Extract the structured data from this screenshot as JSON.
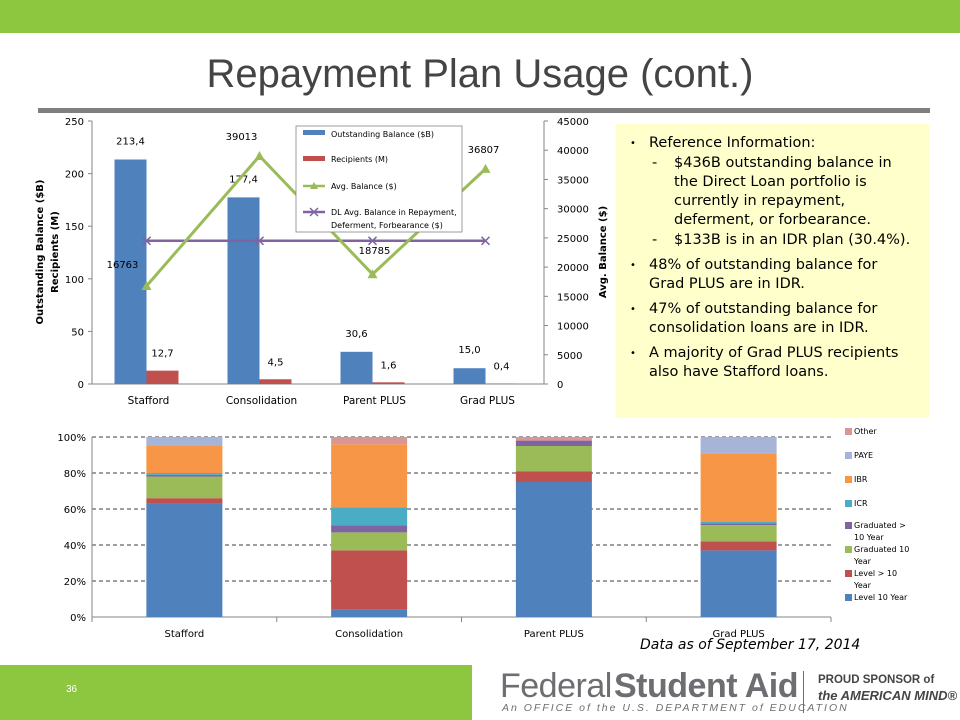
{
  "slide": {
    "title": "Repayment Plan Usage (cont.)",
    "page_number": "36",
    "data_note": "Data as of September 17, 2014"
  },
  "reference_box": {
    "items": [
      {
        "text": "Reference Information:",
        "sub": [
          "$436B outstanding balance in the Direct Loan portfolio is currently in repayment, deferment, or forbearance.",
          "$133B is in an IDR plan (30.4%)."
        ]
      },
      {
        "text": "48% of outstanding balance for Grad PLUS are in IDR.",
        "sub": []
      },
      {
        "text": "47% of outstanding balance for consolidation loans are in IDR.",
        "sub": []
      },
      {
        "text": "A majority of Grad PLUS recipients also have Stafford loans.",
        "sub": []
      }
    ]
  },
  "footer": {
    "logo_federal": "Federal",
    "logo_student_aid": "Student Aid",
    "logo_office": "An OFFICE of the U.S. DEPARTMENT of EDUCATION",
    "sponsor_line1": "PROUD SPONSOR of",
    "sponsor_line2": "the AMERICAN MIND",
    "sponsor_mark": "®"
  },
  "chart_data": [
    {
      "type": "bar",
      "categories": [
        "Stafford",
        "Consolidation",
        "Parent PLUS",
        "Grad PLUS"
      ],
      "ylabel_left_line1": "Outstanding Balance ($B)",
      "ylabel_left_line2": "Recipients (M)",
      "ylabel_right": "Avg. Balance ($)",
      "ylim_left": [
        0,
        250
      ],
      "yticks_left": [
        "0",
        "50",
        "100",
        "150",
        "200",
        "250"
      ],
      "ylim_right": [
        0,
        45000
      ],
      "yticks_right": [
        "0",
        "5000",
        "10000",
        "15000",
        "20000",
        "25000",
        "30000",
        "35000",
        "40000",
        "45000"
      ],
      "legend_position": "top-center",
      "series": [
        {
          "name": "Outstanding Balance ($B)",
          "kind": "bar",
          "axis": "left",
          "color": "#4f81bd",
          "values": [
            213.4,
            177.4,
            30.6,
            15.0
          ],
          "labels": [
            "213,4",
            "177,4",
            "30,6",
            "15,0"
          ]
        },
        {
          "name": "Recipients (M)",
          "kind": "bar",
          "axis": "left",
          "color": "#c0504d",
          "values": [
            12.7,
            4.5,
            1.6,
            0.4
          ],
          "labels": [
            "12,7",
            "4,5",
            "1,6",
            "0,4"
          ]
        },
        {
          "name": "Avg. Balance ($)",
          "kind": "line",
          "axis": "right",
          "color": "#9bbb59",
          "values": [
            16763,
            39013,
            18785,
            36807
          ],
          "labels": [
            "16763",
            "39013",
            "18785",
            "36807"
          ]
        },
        {
          "name_line1": "DL Avg. Balance in Repayment,",
          "name_line2": "Deferment, Forbearance ($)",
          "kind": "line",
          "axis": "right",
          "color": "#8064a2",
          "values": [
            24500,
            24500,
            24500,
            24500
          ]
        }
      ]
    },
    {
      "type": "bar",
      "stacked": true,
      "percent": true,
      "categories": [
        "Stafford",
        "Consolidation",
        "Parent PLUS",
        "Grad PLUS"
      ],
      "ylim": [
        0,
        100
      ],
      "yticks": [
        "0%",
        "20%",
        "40%",
        "60%",
        "80%",
        "100%"
      ],
      "legend_position": "right",
      "series": [
        {
          "name": "Level 10 Year",
          "color": "#4f81bd",
          "values": [
            63,
            4,
            75,
            37
          ]
        },
        {
          "name": "Level > 10 Year",
          "color": "#c0504d",
          "values": [
            3,
            33,
            6,
            5
          ]
        },
        {
          "name": "Graduated 10 Year",
          "color": "#9bbb59",
          "values": [
            12,
            10,
            14,
            9
          ]
        },
        {
          "name": "Graduated > 10 Year",
          "color": "#8064a2",
          "values": [
            1,
            4,
            3,
            1
          ]
        },
        {
          "name": "ICR",
          "color": "#4bacc6",
          "values": [
            1,
            10,
            0,
            1
          ]
        },
        {
          "name": "IBR",
          "color": "#f79646",
          "values": [
            15,
            35,
            0,
            38
          ]
        },
        {
          "name": "PAYE",
          "color": "#a5b4d7",
          "values": [
            5,
            0,
            0,
            9
          ]
        },
        {
          "name": "Other",
          "color": "#d99694",
          "values": [
            0,
            4,
            2,
            0
          ]
        }
      ]
    }
  ]
}
